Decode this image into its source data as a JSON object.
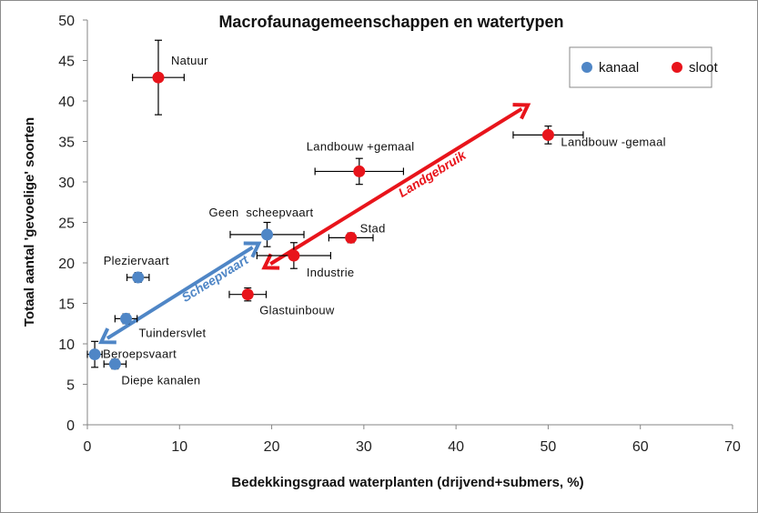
{
  "chart_data": {
    "type": "scatter",
    "title": "Macrofaunagemeenschappen en watertypen",
    "xlabel": "Bedekkingsgraad waterplanten (drijvend+submers, %)",
    "ylabel": "Totaal aantal 'gevoelige' soorten",
    "xlim": [
      0,
      70
    ],
    "ylim": [
      0,
      50
    ],
    "xticks": [
      "0",
      "10",
      "20",
      "30",
      "40",
      "50",
      "60",
      "70"
    ],
    "yticks": [
      "0",
      "5",
      "10",
      "15",
      "20",
      "25",
      "30",
      "35",
      "40",
      "45",
      "50"
    ],
    "grid": false,
    "legend_position": "top-right",
    "series": [
      {
        "name": "kanaal",
        "color": "#4f86c6",
        "points": [
          {
            "label": "Geen  scheepvaart",
            "x": 19.5,
            "y": 23.5,
            "xerr": [
              4,
              4
            ],
            "yerr": [
              1.5,
              1.5
            ]
          },
          {
            "label": "Pleziervaart",
            "x": 5.5,
            "y": 18.2,
            "xerr": [
              1.2,
              1.2
            ],
            "yerr": [
              0.6,
              0.6
            ]
          },
          {
            "label": "Tuindersvlet",
            "x": 4.2,
            "y": 13.1,
            "xerr": [
              1.2,
              1.2
            ],
            "yerr": [
              0.6,
              0.6
            ]
          },
          {
            "label": "Beroepsvaart",
            "x": 0.8,
            "y": 8.7,
            "xerr": [
              0.8,
              0.8
            ],
            "yerr": [
              1.6,
              1.6
            ]
          },
          {
            "label": "Diepe kanalen",
            "x": 3.0,
            "y": 7.5,
            "xerr": [
              1.2,
              1.2
            ],
            "yerr": [
              0.6,
              0.6
            ]
          }
        ]
      },
      {
        "name": "sloot",
        "color": "#e8141b",
        "points": [
          {
            "label": "Natuur",
            "x": 7.7,
            "y": 42.9,
            "xerr": [
              2.8,
              2.8
            ],
            "yerr": [
              4.6,
              4.6
            ]
          },
          {
            "label": "Landbouw +gemaal",
            "x": 29.5,
            "y": 31.3,
            "xerr": [
              4.8,
              4.8
            ],
            "yerr": [
              1.6,
              1.6
            ]
          },
          {
            "label": "Landbouw -gemaal",
            "x": 50.0,
            "y": 35.8,
            "xerr": [
              3.8,
              3.8
            ],
            "yerr": [
              1.1,
              1.1
            ]
          },
          {
            "label": "Stad",
            "x": 28.6,
            "y": 23.1,
            "xerr": [
              2.4,
              2.4
            ],
            "yerr": [
              0.6,
              0.6
            ]
          },
          {
            "label": "Industrie",
            "x": 22.4,
            "y": 20.9,
            "xerr": [
              4.0,
              4.0
            ],
            "yerr": [
              1.6,
              1.6
            ]
          },
          {
            "label": "Glastuinbouw",
            "x": 17.4,
            "y": 16.1,
            "xerr": [
              2.0,
              2.0
            ],
            "yerr": [
              0.8,
              0.8
            ]
          }
        ]
      }
    ],
    "annotations": [
      {
        "text": "Scheepvaart",
        "color": "#4f86c6",
        "from": [
          18.6,
          22.4
        ],
        "to": [
          1.5,
          10.2
        ]
      },
      {
        "text": "Landgebruik",
        "color": "#e8141b",
        "from": [
          19.2,
          19.4
        ],
        "to": [
          47.8,
          39.5
        ]
      }
    ]
  }
}
